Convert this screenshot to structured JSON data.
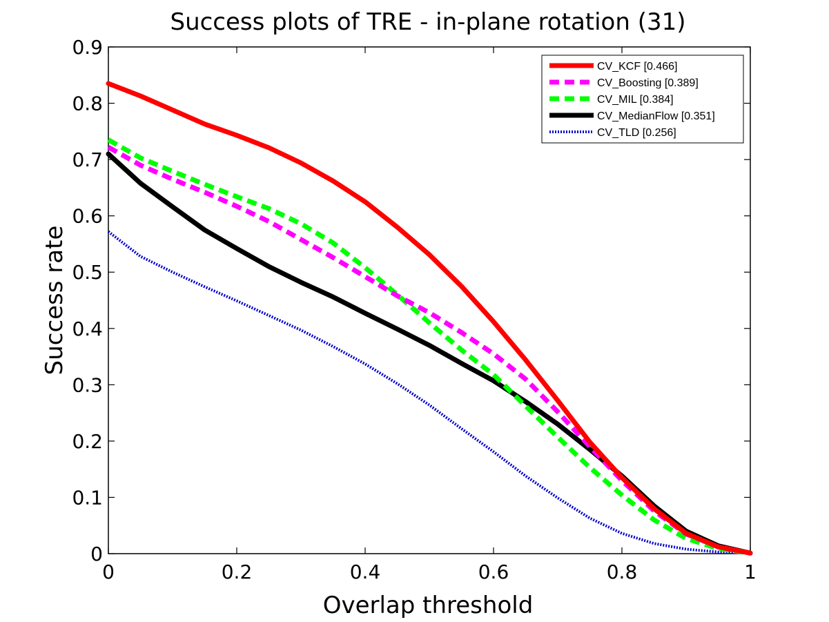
{
  "chart_data": {
    "type": "line",
    "title": "Success plots of TRE - in-plane rotation (31)",
    "xlabel": "Overlap threshold",
    "ylabel": "Success rate",
    "xlim": [
      0,
      1
    ],
    "ylim": [
      0,
      0.9
    ],
    "xticks": [
      0,
      0.2,
      0.4,
      0.6,
      0.8,
      1
    ],
    "xtick_labels": [
      "0",
      "0.2",
      "0.4",
      "0.6",
      "0.8",
      "1"
    ],
    "yticks": [
      0,
      0.1,
      0.2,
      0.3,
      0.4,
      0.5,
      0.6,
      0.7,
      0.8,
      0.9
    ],
    "ytick_labels": [
      "0",
      "0.1",
      "0.2",
      "0.3",
      "0.4",
      "0.5",
      "0.6",
      "0.7",
      "0.8",
      "0.9"
    ],
    "grid": false,
    "legend_position": "top-right",
    "x": [
      0,
      0.05,
      0.1,
      0.15,
      0.2,
      0.25,
      0.3,
      0.35,
      0.4,
      0.45,
      0.5,
      0.55,
      0.6,
      0.65,
      0.7,
      0.75,
      0.8,
      0.85,
      0.9,
      0.95,
      1
    ],
    "series": [
      {
        "name": "CV_KCF [0.466]",
        "color": "#ff0000",
        "style": "solid",
        "width": 7,
        "values": [
          0.835,
          0.813,
          0.788,
          0.763,
          0.743,
          0.721,
          0.694,
          0.662,
          0.625,
          0.58,
          0.531,
          0.475,
          0.412,
          0.344,
          0.272,
          0.198,
          0.135,
          0.08,
          0.036,
          0.012,
          0.001
        ]
      },
      {
        "name": "CV_Boosting [0.389]",
        "color": "#ff00ff",
        "style": "dashed",
        "width": 7,
        "values": [
          0.722,
          0.69,
          0.665,
          0.642,
          0.617,
          0.59,
          0.558,
          0.526,
          0.492,
          0.458,
          0.428,
          0.393,
          0.355,
          0.31,
          0.252,
          0.19,
          0.13,
          0.076,
          0.035,
          0.012,
          0.001
        ]
      },
      {
        "name": "CV_MIL [0.384]",
        "color": "#00ff00",
        "style": "dashed",
        "width": 7,
        "values": [
          0.735,
          0.703,
          0.679,
          0.656,
          0.634,
          0.613,
          0.586,
          0.552,
          0.508,
          0.46,
          0.41,
          0.362,
          0.318,
          0.262,
          0.207,
          0.153,
          0.104,
          0.06,
          0.027,
          0.009,
          0.001
        ]
      },
      {
        "name": "CV_MedianFlow [0.351]",
        "color": "#000000",
        "style": "solid",
        "width": 7,
        "values": [
          0.71,
          0.658,
          0.616,
          0.575,
          0.542,
          0.51,
          0.482,
          0.456,
          0.427,
          0.399,
          0.37,
          0.338,
          0.307,
          0.27,
          0.23,
          0.185,
          0.138,
          0.085,
          0.04,
          0.014,
          0.001
        ]
      },
      {
        "name": "CV_TLD [0.256]",
        "color": "#0000cc",
        "style": "dotted",
        "width": 4,
        "values": [
          0.572,
          0.528,
          0.5,
          0.474,
          0.449,
          0.423,
          0.397,
          0.368,
          0.337,
          0.302,
          0.264,
          0.222,
          0.181,
          0.138,
          0.099,
          0.063,
          0.036,
          0.018,
          0.008,
          0.003,
          0.001
        ]
      }
    ]
  }
}
